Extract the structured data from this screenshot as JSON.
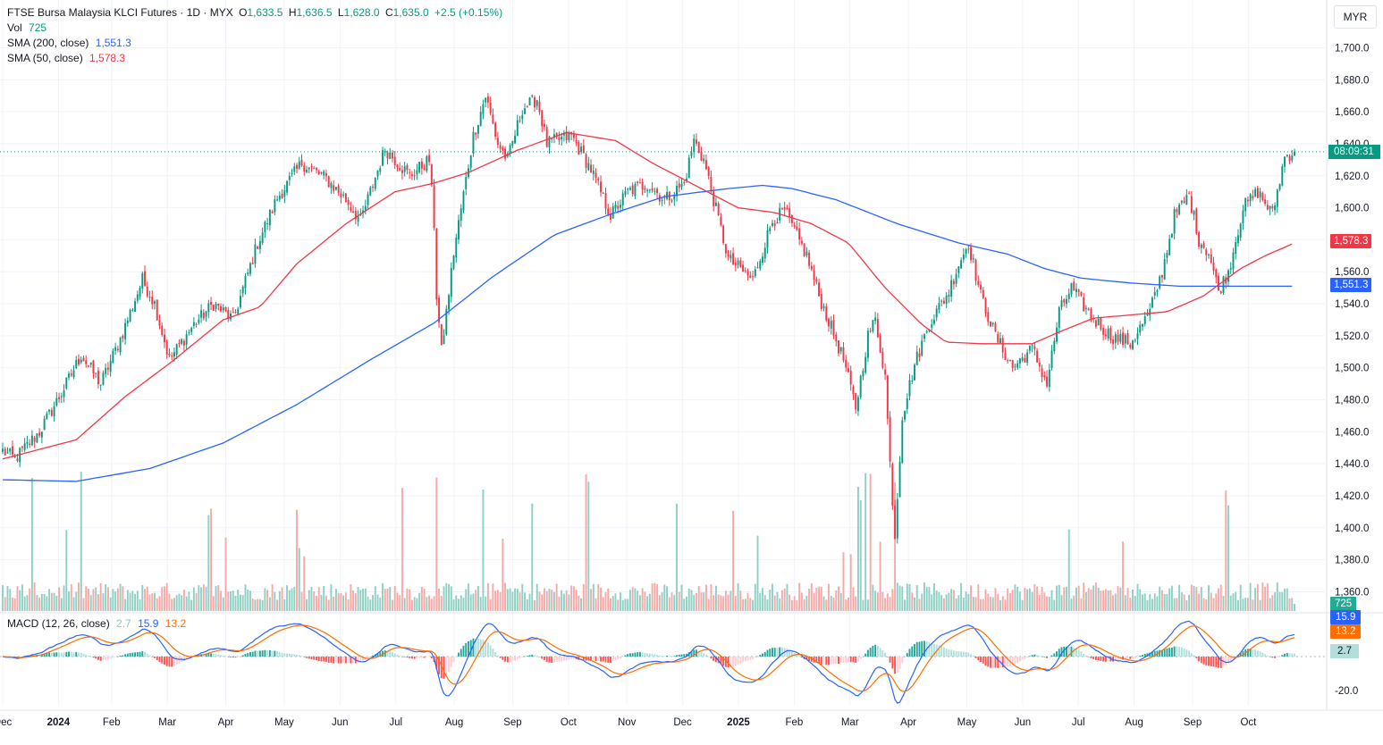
{
  "header": {
    "symbol": "FTSE Bursa Malaysia KLCI Futures · 1D · MYX",
    "o_label": "O",
    "o": "1,633.5",
    "h_label": "H",
    "h": "1,636.5",
    "l_label": "L",
    "l": "1,628.0",
    "c_label": "C",
    "c": "1,635.0",
    "change": "+2.5 (+0.15%)"
  },
  "indicators": {
    "vol_label": "Vol",
    "vol_value": "725",
    "sma200_label": "SMA (200, close)",
    "sma200_value": "1,551.3",
    "sma50_label": "SMA (50, close)",
    "sma50_value": "1,578.3",
    "macd_label": "MACD (12, 26, close)",
    "macd_hist": "2.7",
    "macd_line": "15.9",
    "macd_signal": "13.2"
  },
  "currency": "MYR",
  "tags": {
    "countdown": "08:09:31",
    "sma50": "1,578.3",
    "sma200": "1,551.3",
    "volume": "725",
    "macd_line": "15.9",
    "macd_signal": "13.2",
    "macd_hist": "2.7"
  },
  "colors": {
    "up": "#089981",
    "down": "#f23645",
    "sma200": "#2962ff",
    "sma50": "#f23645",
    "macd": "#2962ff",
    "signal": "#ff6d00"
  },
  "chart_data": {
    "type": "candlestick",
    "title": "FTSE Bursa Malaysia KLCI Futures · 1D · MYX",
    "last_price": 1635.0,
    "y_ticks": [
      1360,
      1380,
      1400,
      1420,
      1440,
      1460,
      1480,
      1500,
      1520,
      1540,
      1560,
      1580,
      1600,
      1620,
      1640,
      1660,
      1680,
      1700
    ],
    "y_tick_labels": [
      "1,360.0",
      "1,380.0",
      "1,400.0",
      "1,420.0",
      "1,440.0",
      "1,460.0",
      "1,480.0",
      "1,500.0",
      "1,520.0",
      "1,540.0",
      "1,560.0",
      "1,580.0",
      "1,600.0",
      "1,620.0",
      "1,640.0",
      "1,660.0",
      "1,680.0",
      "1,700.0"
    ],
    "ylim": [
      1340,
      1715
    ],
    "x_labels": [
      "Dec",
      "2024",
      "Feb",
      "Mar",
      "Apr",
      "May",
      "Jun",
      "Jul",
      "Aug",
      "Sep",
      "Oct",
      "Nov",
      "Dec",
      "2025",
      "Feb",
      "Mar",
      "Apr",
      "May",
      "Jun",
      "Jul",
      "Aug",
      "Sep",
      "Oct"
    ],
    "x_bold": [
      "2024",
      "2025"
    ],
    "x_label_days": [
      0,
      21,
      41,
      62,
      84,
      106,
      127,
      148,
      170,
      192,
      213,
      235,
      256,
      277,
      298,
      319,
      341,
      363,
      384,
      405,
      426,
      448,
      469
    ],
    "days_total": 483,
    "price_anchors": [
      [
        0,
        1448
      ],
      [
        5,
        1443
      ],
      [
        15,
        1460
      ],
      [
        25,
        1487
      ],
      [
        32,
        1508
      ],
      [
        40,
        1490
      ],
      [
        48,
        1518
      ],
      [
        57,
        1555
      ],
      [
        62,
        1540
      ],
      [
        68,
        1505
      ],
      [
        78,
        1527
      ],
      [
        86,
        1540
      ],
      [
        94,
        1530
      ],
      [
        104,
        1578
      ],
      [
        112,
        1606
      ],
      [
        122,
        1628
      ],
      [
        132,
        1618
      ],
      [
        140,
        1605
      ],
      [
        146,
        1592
      ],
      [
        156,
        1637
      ],
      [
        166,
        1620
      ],
      [
        174,
        1630
      ],
      [
        176,
        1590
      ],
      [
        177,
        1545
      ],
      [
        179,
        1510
      ],
      [
        184,
        1572
      ],
      [
        192,
        1645
      ],
      [
        197,
        1670
      ],
      [
        202,
        1640
      ],
      [
        206,
        1630
      ],
      [
        212,
        1662
      ],
      [
        218,
        1668
      ],
      [
        222,
        1640
      ],
      [
        232,
        1645
      ],
      [
        240,
        1624
      ],
      [
        248,
        1595
      ],
      [
        255,
        1610
      ],
      [
        263,
        1615
      ],
      [
        270,
        1605
      ],
      [
        278,
        1615
      ],
      [
        282,
        1642
      ],
      [
        286,
        1630
      ],
      [
        290,
        1605
      ],
      [
        296,
        1568
      ],
      [
        306,
        1555
      ],
      [
        314,
        1592
      ],
      [
        319,
        1598
      ],
      [
        324,
        1582
      ],
      [
        328,
        1570
      ],
      [
        333,
        1545
      ],
      [
        338,
        1525
      ],
      [
        343,
        1505
      ],
      [
        348,
        1475
      ],
      [
        353,
        1520
      ],
      [
        356,
        1530
      ],
      [
        360,
        1495
      ],
      [
        362,
        1440
      ],
      [
        364,
        1395
      ],
      [
        367,
        1470
      ],
      [
        372,
        1502
      ],
      [
        378,
        1528
      ],
      [
        383,
        1540
      ],
      [
        386,
        1548
      ],
      [
        390,
        1565
      ],
      [
        394,
        1578
      ],
      [
        399,
        1545
      ],
      [
        405,
        1520
      ],
      [
        412,
        1500
      ],
      [
        420,
        1512
      ],
      [
        426,
        1490
      ],
      [
        431,
        1535
      ],
      [
        436,
        1550
      ],
      [
        444,
        1532
      ],
      [
        452,
        1520
      ],
      [
        460,
        1515
      ],
      [
        468,
        1535
      ],
      [
        473,
        1560
      ],
      [
        478,
        1595
      ],
      [
        484,
        1608
      ],
      [
        488,
        1580
      ],
      [
        492,
        1572
      ],
      [
        496,
        1548
      ],
      [
        500,
        1560
      ],
      [
        506,
        1600
      ],
      [
        512,
        1610
      ],
      [
        518,
        1596
      ],
      [
        523,
        1632
      ],
      [
        527,
        1635
      ]
    ],
    "sma200_anchors": [
      [
        0,
        1430
      ],
      [
        30,
        1429
      ],
      [
        60,
        1437
      ],
      [
        90,
        1453
      ],
      [
        120,
        1477
      ],
      [
        150,
        1505
      ],
      [
        176,
        1528
      ],
      [
        200,
        1557
      ],
      [
        225,
        1583
      ],
      [
        248,
        1596
      ],
      [
        270,
        1607
      ],
      [
        296,
        1612
      ],
      [
        310,
        1614
      ],
      [
        322,
        1612
      ],
      [
        340,
        1605
      ],
      [
        365,
        1590
      ],
      [
        390,
        1578
      ],
      [
        410,
        1571
      ],
      [
        425,
        1562
      ],
      [
        440,
        1556
      ],
      [
        460,
        1553
      ],
      [
        480,
        1551
      ],
      [
        500,
        1551
      ],
      [
        527,
        1551
      ]
    ],
    "sma50_anchors": [
      [
        0,
        1443
      ],
      [
        30,
        1455
      ],
      [
        50,
        1482
      ],
      [
        70,
        1505
      ],
      [
        90,
        1530
      ],
      [
        105,
        1538
      ],
      [
        120,
        1565
      ],
      [
        140,
        1590
      ],
      [
        160,
        1610
      ],
      [
        175,
        1615
      ],
      [
        190,
        1622
      ],
      [
        210,
        1636
      ],
      [
        230,
        1647
      ],
      [
        250,
        1642
      ],
      [
        265,
        1628
      ],
      [
        285,
        1612
      ],
      [
        300,
        1600
      ],
      [
        315,
        1597
      ],
      [
        330,
        1590
      ],
      [
        345,
        1578
      ],
      [
        360,
        1550
      ],
      [
        375,
        1527
      ],
      [
        385,
        1516
      ],
      [
        400,
        1515
      ],
      [
        420,
        1515
      ],
      [
        432,
        1523
      ],
      [
        445,
        1531
      ],
      [
        460,
        1533
      ],
      [
        475,
        1535
      ],
      [
        490,
        1545
      ],
      [
        505,
        1562
      ],
      [
        515,
        1570
      ],
      [
        527,
        1578
      ]
    ],
    "macd_ticks": [
      -20.0,
      0.0
    ],
    "macd_ylim": [
      -28,
      28
    ]
  }
}
